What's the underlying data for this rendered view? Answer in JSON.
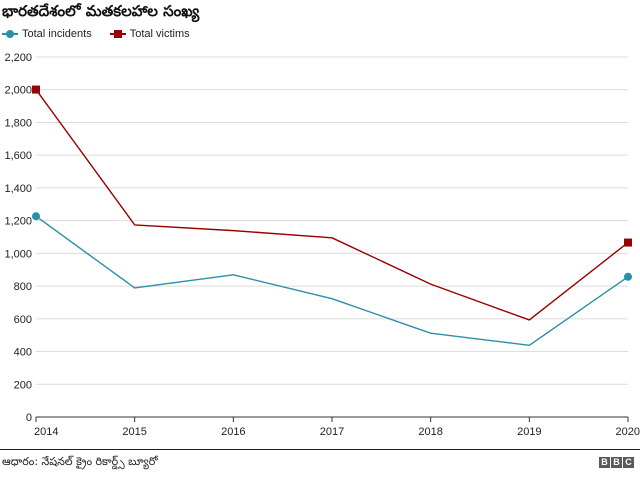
{
  "header": {
    "title": "భారతదేశంలో మతకలహాల సంఖ్య"
  },
  "legend": [
    {
      "label": "Total incidents",
      "color": "#2a8fa8",
      "marker": "circle"
    },
    {
      "label": "Total victims",
      "color": "#990000",
      "marker": "square"
    }
  ],
  "chart_data": {
    "type": "line",
    "title": "భారతదేశంలో మతకలహాల సంఖ్య",
    "xlabel": "",
    "ylabel": "",
    "categories": [
      "2014",
      "2015",
      "2016",
      "2017",
      "2018",
      "2019",
      "2020"
    ],
    "ylim": [
      0,
      2200
    ],
    "yticks": [
      0,
      200,
      400,
      600,
      800,
      1000,
      1200,
      1400,
      1600,
      1800,
      2000,
      2200
    ],
    "ytick_labels": [
      "0",
      "200",
      "400",
      "600",
      "800",
      "1,000",
      "1,200",
      "1,400",
      "1,600",
      "1,800",
      "2,000",
      "2,200"
    ],
    "grid": true,
    "legend_position": "top-left",
    "series": [
      {
        "name": "Total incidents",
        "color": "#2a8fa8",
        "marker": "circle",
        "values": [
          1227,
          789,
          869,
          723,
          512,
          438,
          857
        ]
      },
      {
        "name": "Total victims",
        "color": "#990000",
        "marker": "square",
        "values": [
          2001,
          1174,
          1139,
          1095,
          812,
          593,
          1066
        ]
      }
    ]
  },
  "footer": {
    "source": "ఆధారం: నేషనల్ క్రైం రికార్డ్స్ బ్యూరో",
    "logo_letters": [
      "B",
      "B",
      "C"
    ]
  }
}
